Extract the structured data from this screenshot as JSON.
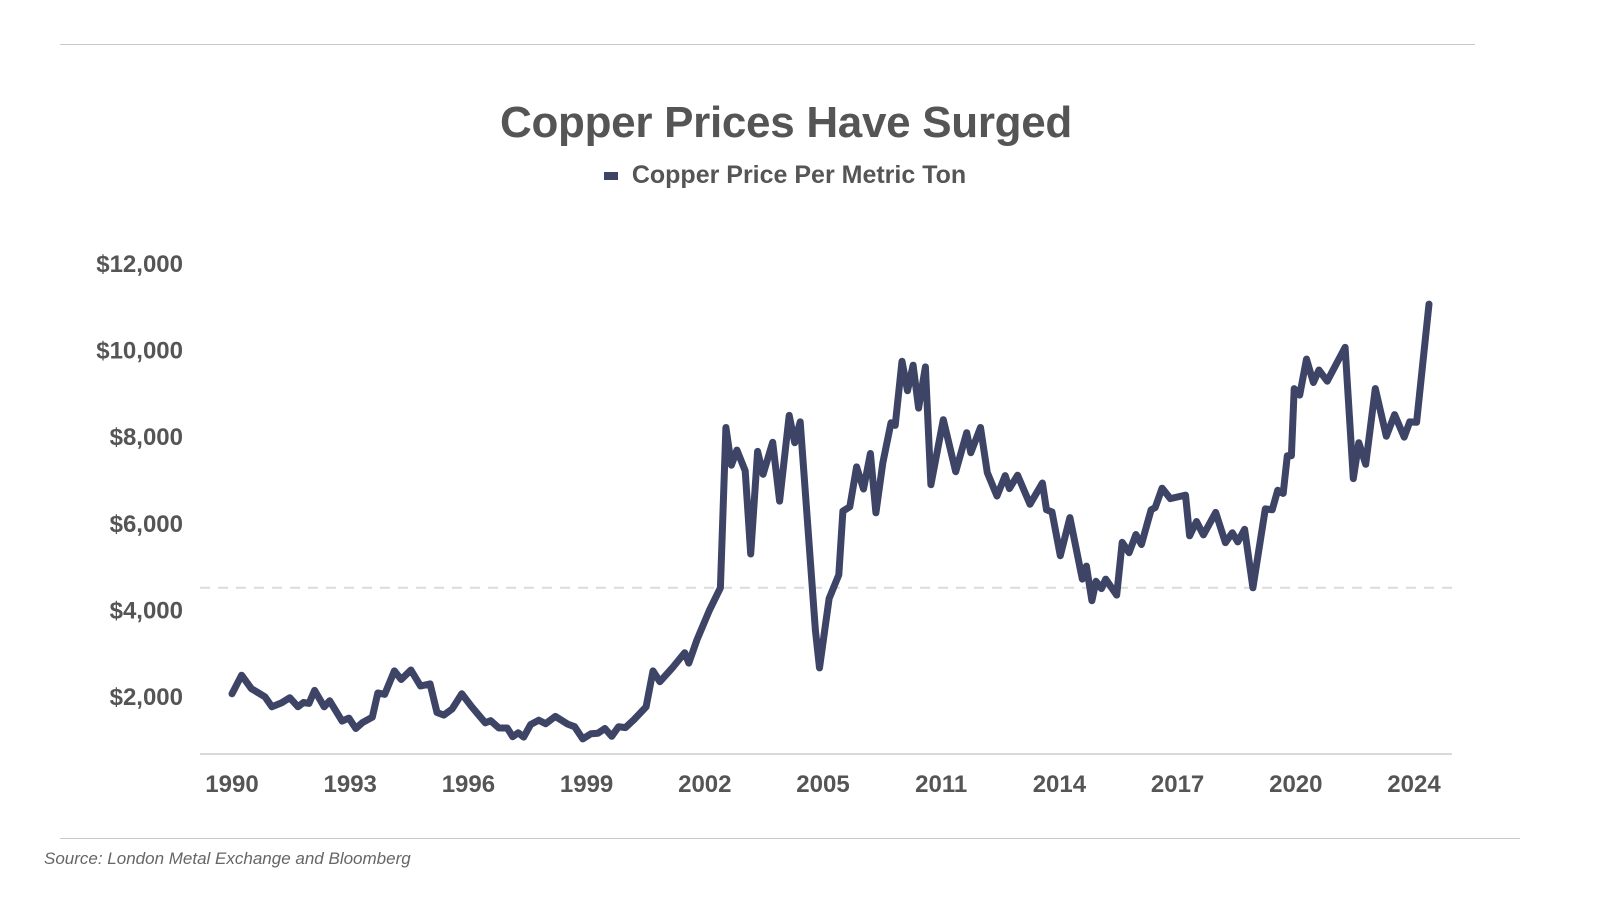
{
  "chart_data": {
    "type": "line",
    "title": "Copper Prices Have Surged",
    "xlabel": "",
    "ylabel": "",
    "legend": {
      "position": "top-center"
    },
    "grid": false,
    "reference_line": {
      "y": 4500,
      "style": "dashed"
    },
    "x_ticks": [
      1990,
      1993,
      1996,
      1999,
      2002,
      2005,
      2011,
      2014,
      2017,
      2020,
      2024
    ],
    "y_ticks": [
      2000,
      4000,
      6000,
      8000,
      10000,
      12000
    ],
    "y_tick_labels": [
      "$2,000",
      "$4,000",
      "$6,000",
      "$8,000",
      "$10,000",
      "$12,000"
    ],
    "ylim": [
      650,
      12500
    ],
    "series": [
      {
        "name": "Copper Price Per Metric Ton",
        "color": "#3d4466",
        "points": [
          [
            1990.0,
            2050
          ],
          [
            1990.35,
            2480
          ],
          [
            1990.7,
            2170
          ],
          [
            1991.2,
            1980
          ],
          [
            1991.45,
            1750
          ],
          [
            1991.8,
            1840
          ],
          [
            1992.1,
            1960
          ],
          [
            1992.4,
            1750
          ],
          [
            1992.6,
            1850
          ],
          [
            1992.8,
            1830
          ],
          [
            1993.0,
            2130
          ],
          [
            1993.35,
            1750
          ],
          [
            1993.55,
            1890
          ],
          [
            1994.0,
            1420
          ],
          [
            1994.25,
            1490
          ],
          [
            1994.5,
            1250
          ],
          [
            1994.75,
            1390
          ],
          [
            1995.1,
            1510
          ],
          [
            1995.3,
            2070
          ],
          [
            1995.55,
            2040
          ],
          [
            1995.9,
            2580
          ],
          [
            1996.15,
            2380
          ],
          [
            1996.5,
            2600
          ],
          [
            1996.85,
            2230
          ],
          [
            1997.2,
            2280
          ],
          [
            1997.45,
            1620
          ],
          [
            1997.7,
            1560
          ],
          [
            1998.0,
            1700
          ],
          [
            1998.35,
            2050
          ],
          [
            1998.7,
            1760
          ],
          [
            1999.2,
            1380
          ],
          [
            1999.4,
            1430
          ],
          [
            1999.7,
            1260
          ],
          [
            2000.0,
            1260
          ],
          [
            2000.2,
            1060
          ],
          [
            2000.4,
            1150
          ],
          [
            2000.6,
            1050
          ],
          [
            2000.85,
            1340
          ],
          [
            2001.15,
            1440
          ],
          [
            2001.4,
            1360
          ],
          [
            2001.75,
            1530
          ],
          [
            2002.2,
            1350
          ],
          [
            2002.45,
            1290
          ],
          [
            2002.75,
            1010
          ],
          [
            2003.05,
            1130
          ],
          [
            2003.3,
            1140
          ],
          [
            2003.55,
            1250
          ],
          [
            2003.8,
            1070
          ],
          [
            2004.05,
            1290
          ],
          [
            2004.3,
            1270
          ],
          [
            2004.6,
            1450
          ],
          [
            2005.05,
            1750
          ],
          [
            2005.3,
            2580
          ],
          [
            2005.55,
            2330
          ],
          [
            2006.0,
            2650
          ],
          [
            2006.45,
            3000
          ],
          [
            2006.6,
            2760
          ],
          [
            2006.9,
            3300
          ],
          [
            2007.35,
            3980
          ],
          [
            2007.75,
            4500
          ],
          [
            2007.95,
            8200
          ],
          [
            2008.15,
            7330
          ],
          [
            2008.35,
            7680
          ],
          [
            2008.65,
            7200
          ],
          [
            2008.85,
            5280
          ],
          [
            2009.1,
            7650
          ],
          [
            2009.3,
            7120
          ],
          [
            2009.65,
            7860
          ],
          [
            2009.9,
            6500
          ],
          [
            2010.25,
            8480
          ],
          [
            2010.45,
            7850
          ],
          [
            2010.65,
            8330
          ],
          [
            2011.2,
            3520
          ],
          [
            2011.35,
            2650
          ],
          [
            2011.7,
            4250
          ],
          [
            2012.05,
            4800
          ],
          [
            2012.2,
            6270
          ],
          [
            2012.45,
            6370
          ],
          [
            2012.7,
            7290
          ],
          [
            2012.95,
            6780
          ],
          [
            2013.2,
            7600
          ],
          [
            2013.4,
            6230
          ],
          [
            2013.65,
            7380
          ],
          [
            2013.95,
            8310
          ],
          [
            2014.1,
            8250
          ],
          [
            2014.35,
            9730
          ],
          [
            2014.55,
            9050
          ],
          [
            2014.75,
            9640
          ],
          [
            2014.95,
            8650
          ],
          [
            2015.2,
            9600
          ],
          [
            2015.4,
            6880
          ],
          [
            2015.85,
            8380
          ],
          [
            2016.3,
            7180
          ],
          [
            2016.7,
            8080
          ],
          [
            2016.85,
            7620
          ],
          [
            2017.2,
            8200
          ],
          [
            2017.45,
            7160
          ],
          [
            2017.8,
            6620
          ],
          [
            2018.1,
            7090
          ],
          [
            2018.25,
            6790
          ],
          [
            2018.55,
            7100
          ],
          [
            2019.0,
            6430
          ],
          [
            2019.45,
            6920
          ],
          [
            2019.6,
            6300
          ],
          [
            2019.8,
            6250
          ],
          [
            2020.1,
            5240
          ],
          [
            2020.45,
            6120
          ],
          [
            2020.9,
            4700
          ],
          [
            2021.05,
            5000
          ],
          [
            2021.25,
            4200
          ],
          [
            2021.4,
            4650
          ],
          [
            2021.6,
            4480
          ],
          [
            2021.75,
            4700
          ],
          [
            2022.15,
            4330
          ],
          [
            2022.35,
            5550
          ],
          [
            2022.6,
            5310
          ],
          [
            2022.85,
            5730
          ],
          [
            2023.05,
            5500
          ],
          [
            2023.4,
            6300
          ],
          [
            2023.55,
            6350
          ],
          [
            2023.8,
            6800
          ],
          [
            2024.1,
            6560
          ],
          [
            2024.65,
            6640
          ],
          [
            2024.8,
            5700
          ],
          [
            2025.05,
            6030
          ],
          [
            2025.3,
            5720
          ],
          [
            2025.75,
            6240
          ],
          [
            2026.1,
            5540
          ],
          [
            2026.35,
            5770
          ],
          [
            2026.55,
            5560
          ],
          [
            2026.8,
            5850
          ],
          [
            2027.1,
            4500
          ],
          [
            2027.55,
            6320
          ],
          [
            2027.8,
            6300
          ],
          [
            2028.0,
            6750
          ],
          [
            2028.2,
            6680
          ],
          [
            2028.35,
            7550
          ],
          [
            2028.5,
            7550
          ],
          [
            2028.6,
            9100
          ],
          [
            2028.8,
            8950
          ],
          [
            2029.05,
            9780
          ],
          [
            2029.3,
            9240
          ],
          [
            2029.5,
            9530
          ],
          [
            2029.8,
            9270
          ],
          [
            2030.45,
            10050
          ],
          [
            2030.75,
            7020
          ],
          [
            2030.95,
            7850
          ],
          [
            2031.2,
            7350
          ],
          [
            2031.55,
            9100
          ],
          [
            2031.95,
            8000
          ],
          [
            2032.25,
            8500
          ],
          [
            2032.6,
            7980
          ],
          [
            2032.8,
            8330
          ],
          [
            2033.05,
            8320
          ],
          [
            2033.5,
            11050
          ]
        ]
      }
    ]
  },
  "footer": {
    "source": "Source: London Metal Exchange and Bloomberg"
  }
}
